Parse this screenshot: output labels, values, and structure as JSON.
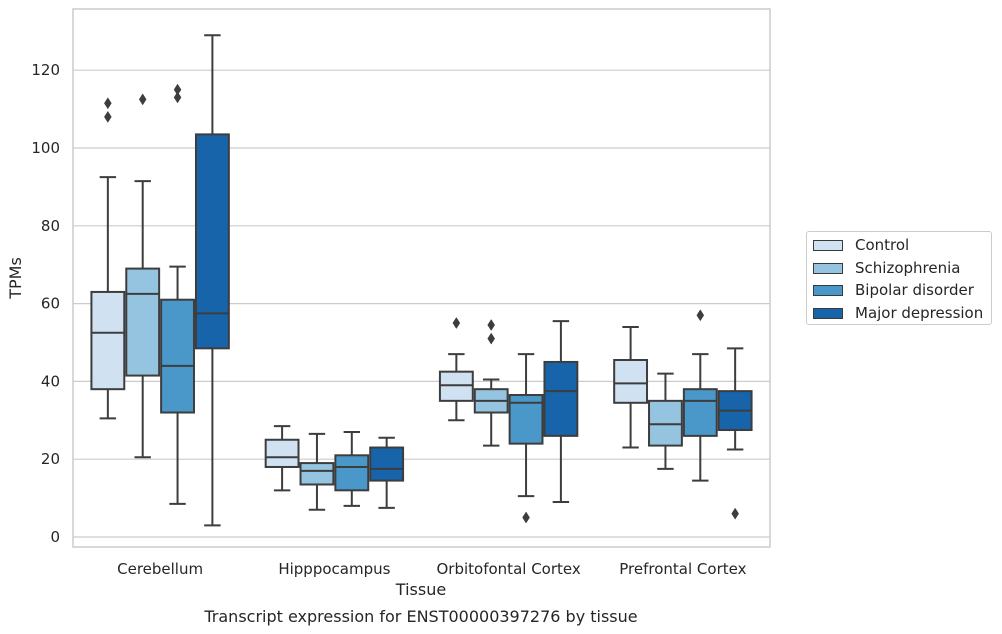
{
  "chart_data": {
    "type": "box",
    "xlabel": "Tissue",
    "ylabel": "TPMs",
    "caption": "Transcript expression for ENST00000397276 by tissue",
    "ylim": [
      -2,
      134
    ],
    "yticks": [
      0,
      20,
      40,
      60,
      80,
      100,
      120
    ],
    "grid": "horizontal",
    "legend_placement": "right (outside)",
    "categories": [
      "Cerebellum",
      "Hipppocampus",
      "Orbitofontal Cortex",
      "Prefrontal Cortex"
    ],
    "series": [
      {
        "name": "Control",
        "color": "#d0e1f2",
        "boxes": [
          {
            "min": 30.5,
            "q1": 38,
            "median": 52.5,
            "q3": 63,
            "max": 92.5,
            "outliers": [
              108,
              111.5
            ]
          },
          {
            "min": 12,
            "q1": 18,
            "median": 20.5,
            "q3": 25,
            "max": 28.5,
            "outliers": []
          },
          {
            "min": 30,
            "q1": 35,
            "median": 39,
            "q3": 42.5,
            "max": 47,
            "outliers": [
              55
            ]
          },
          {
            "min": 23,
            "q1": 34.5,
            "median": 39.5,
            "q3": 45.5,
            "max": 54,
            "outliers": []
          }
        ]
      },
      {
        "name": "Schizophrenia",
        "color": "#94c4df",
        "boxes": [
          {
            "min": 20.5,
            "q1": 41.5,
            "median": 62.5,
            "q3": 69,
            "max": 91.5,
            "outliers": [
              112.5
            ]
          },
          {
            "min": 7,
            "q1": 13.5,
            "median": 17,
            "q3": 19,
            "max": 26.5,
            "outliers": []
          },
          {
            "min": 23.5,
            "q1": 32,
            "median": 35,
            "q3": 38,
            "max": 40.5,
            "outliers": [
              51,
              54.5
            ]
          },
          {
            "min": 17.5,
            "q1": 23.5,
            "median": 29,
            "q3": 35,
            "max": 42,
            "outliers": []
          }
        ]
      },
      {
        "name": "Bipolar disorder",
        "color": "#4a98c9",
        "boxes": [
          {
            "min": 8.5,
            "q1": 32,
            "median": 44,
            "q3": 61,
            "max": 69.5,
            "outliers": [
              113,
              115
            ]
          },
          {
            "min": 8,
            "q1": 12,
            "median": 18,
            "q3": 21,
            "max": 27,
            "outliers": []
          },
          {
            "min": 10.5,
            "q1": 24,
            "median": 34.5,
            "q3": 36.5,
            "max": 47,
            "outliers": [
              5
            ]
          },
          {
            "min": 14.5,
            "q1": 26,
            "median": 35,
            "q3": 38,
            "max": 47,
            "outliers": [
              57
            ]
          }
        ]
      },
      {
        "name": "Major depression",
        "color": "#1764ab",
        "boxes": [
          {
            "min": 3,
            "q1": 48.5,
            "median": 57.5,
            "q3": 103.5,
            "max": 129,
            "outliers": []
          },
          {
            "min": 7.5,
            "q1": 14.5,
            "median": 17.5,
            "q3": 23,
            "max": 25.5,
            "outliers": []
          },
          {
            "min": 9,
            "q1": 26,
            "median": 37.5,
            "q3": 45,
            "max": 55.5,
            "outliers": []
          },
          {
            "min": 22.5,
            "q1": 27.5,
            "median": 32.5,
            "q3": 37.5,
            "max": 48.5,
            "outliers": [
              6
            ]
          }
        ]
      }
    ]
  }
}
